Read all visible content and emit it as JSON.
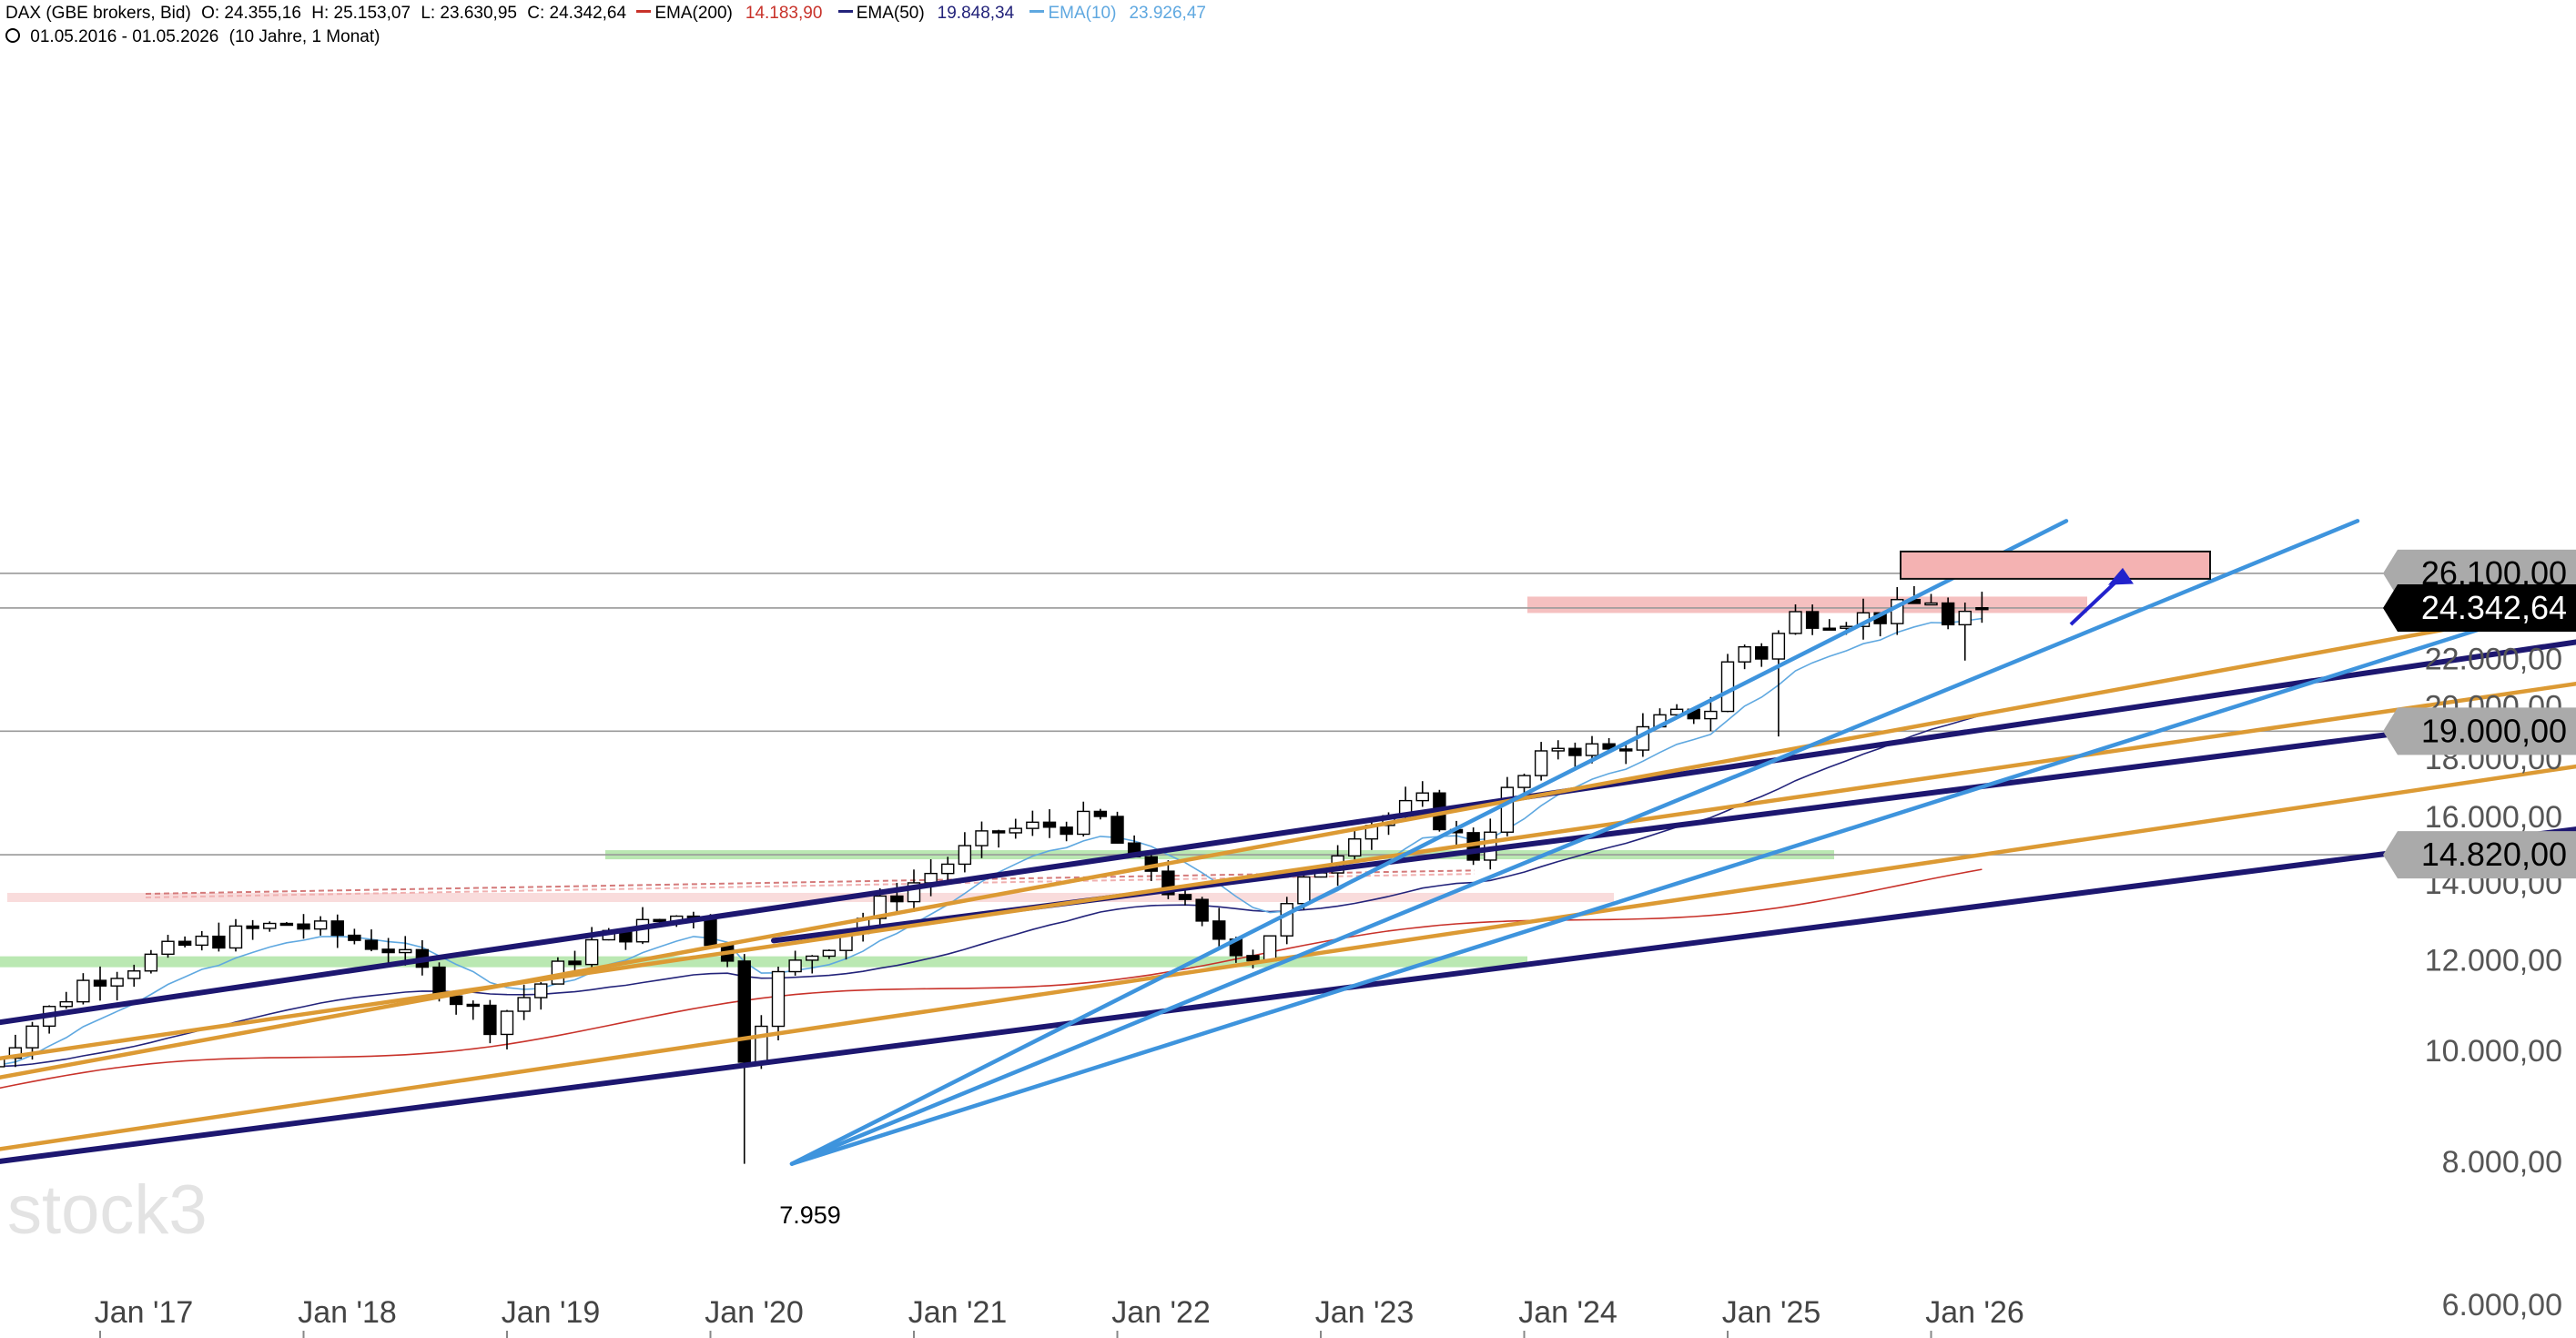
{
  "header": {
    "instrument": "DAX (GBE brokers, Bid)",
    "open": "O: 24.355,16",
    "high": "H: 25.153,07",
    "low": "L: 23.630,95",
    "close": "C: 24.342,64",
    "ema200_label": "EMA(200)",
    "ema200_value": "14.183,90",
    "ema200_color": "#c8322a",
    "ema50_label": "EMA(50)",
    "ema50_value": "19.848,34",
    "ema50_color": "#23237a",
    "ema10_label": "EMA(10)",
    "ema10_value": "23.926,47",
    "ema10_color": "#5fa8e0",
    "period": "01.05.2016 - 01.05.2026",
    "range_note": "(10 Jahre, 1 Monat)",
    "clock_icon": "clock-icon"
  },
  "watermark": "stock3",
  "low_label": "7.959",
  "price_labels": [
    {
      "text": "26.100,00",
      "value": 26100,
      "style": "level"
    },
    {
      "text": "24.342,64",
      "value": 24342.64,
      "style": "current"
    },
    {
      "text": "19.000,00",
      "value": 19000,
      "style": "level"
    },
    {
      "text": "14.820,00",
      "value": 14820,
      "style": "level"
    }
  ],
  "chart_data": {
    "type": "candlestick",
    "interval": "1 month",
    "y_scale": "log",
    "ylim": [
      6000,
      29000
    ],
    "y_ticks": [
      {
        "value": 6000,
        "label": "6.000,00"
      },
      {
        "value": 8000,
        "label": "8.000,00"
      },
      {
        "value": 10000,
        "label": "10.000,00"
      },
      {
        "value": 12000,
        "label": "12.000,00"
      },
      {
        "value": 14000,
        "label": "14.000,00"
      },
      {
        "value": 16000,
        "label": "16.000,00"
      },
      {
        "value": 18000,
        "label": "18.000,00"
      },
      {
        "value": 20000,
        "label": "20.000,00"
      },
      {
        "value": 22000,
        "label": "22.000,00"
      }
    ],
    "x_ticks": [
      "Jan '17",
      "Jan '18",
      "Jan '19",
      "Jan '20",
      "Jan '21",
      "Jan '22",
      "Jan '23",
      "Jan '24",
      "Jan '25",
      "Jan '26"
    ],
    "horizontal_levels": [
      26100,
      24342.64,
      19000,
      14820
    ],
    "series": [
      {
        "name": "DAX",
        "ohlc_anchors": [
          {
            "date": "2016-06",
            "close": 9680
          },
          {
            "date": "2016-12",
            "close": 11480
          },
          {
            "date": "2017-06",
            "close": 12330
          },
          {
            "date": "2017-12",
            "close": 12920
          },
          {
            "date": "2018-06",
            "close": 12300
          },
          {
            "date": "2018-12",
            "close": 10560
          },
          {
            "date": "2019-06",
            "close": 12400
          },
          {
            "date": "2019-12",
            "close": 13250
          },
          {
            "date": "2020-03",
            "close": 9940
          },
          {
            "date": "2020-03-low",
            "close": 7959
          },
          {
            "date": "2020-12",
            "close": 13720
          },
          {
            "date": "2021-06",
            "close": 15530
          },
          {
            "date": "2021-12",
            "close": 15880
          },
          {
            "date": "2022-09",
            "close": 12110
          },
          {
            "date": "2022-12",
            "close": 13920
          },
          {
            "date": "2023-07",
            "close": 16450
          },
          {
            "date": "2023-10",
            "close": 14810
          },
          {
            "date": "2023-12",
            "close": 16750
          },
          {
            "date": "2024-06",
            "close": 18240
          },
          {
            "date": "2024-12",
            "close": 19910
          },
          {
            "date": "2025-03",
            "close": 22160
          },
          {
            "date": "2025-06",
            "close": 23910
          },
          {
            "date": "2025-10",
            "close": 23950
          },
          {
            "date": "2025-12",
            "close": 24490
          },
          {
            "date": "2026-02",
            "close": 23400
          },
          {
            "date": "2026-04",
            "close": 24342.64
          }
        ]
      },
      {
        "name": "EMA(10)",
        "value_last": 23926.47
      },
      {
        "name": "EMA(50)",
        "value_last": 19848.34
      },
      {
        "name": "EMA(200)",
        "value_last": 14183.9
      }
    ],
    "annotations": [
      "target box near 26.100",
      "resistance zone near 24.342",
      "arrow to 26.100",
      "support zones near 14.820 and 12.000",
      "trendlines"
    ]
  }
}
